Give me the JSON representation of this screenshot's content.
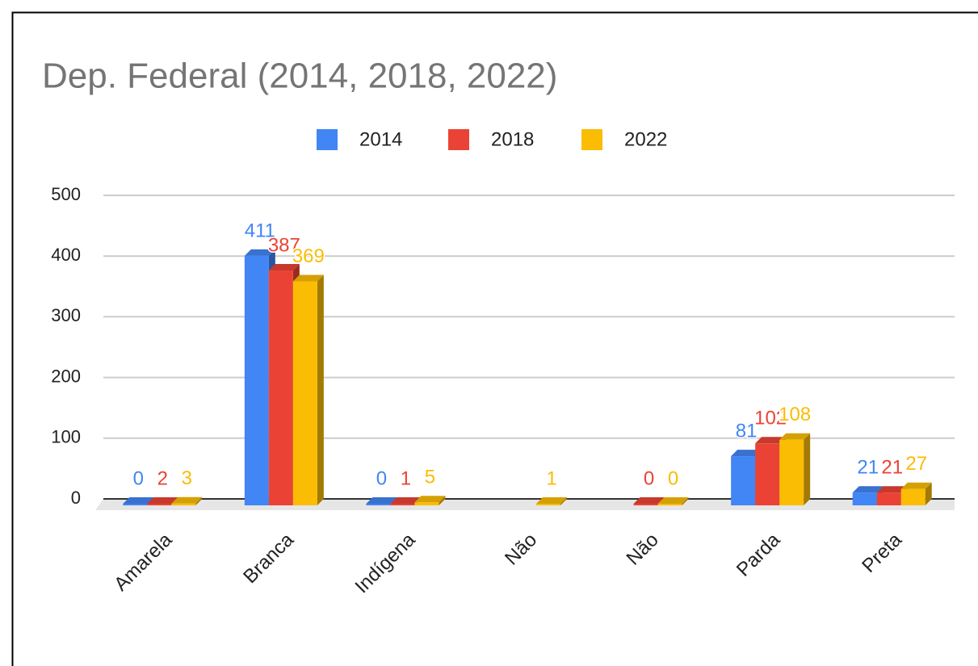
{
  "chart_data": {
    "type": "bar",
    "title": "Dep. Federal (2014, 2018, 2022)",
    "categories": [
      "Amarela",
      "Branca",
      "Indígena",
      "Não",
      "Não",
      "Parda",
      "Preta"
    ],
    "series": [
      {
        "name": "2014",
        "color": "#4285f4",
        "values": [
          0,
          411,
          0,
          null,
          null,
          81,
          21
        ]
      },
      {
        "name": "2018",
        "color": "#ea4335",
        "values": [
          2,
          387,
          1,
          null,
          0,
          102,
          21
        ]
      },
      {
        "name": "2022",
        "color": "#fbbc04",
        "values": [
          3,
          369,
          5,
          1,
          0,
          108,
          27
        ]
      }
    ],
    "ylim": [
      0,
      500
    ],
    "yticks": [
      0,
      100,
      200,
      300,
      400,
      500
    ],
    "grid": true,
    "legend": "top"
  }
}
